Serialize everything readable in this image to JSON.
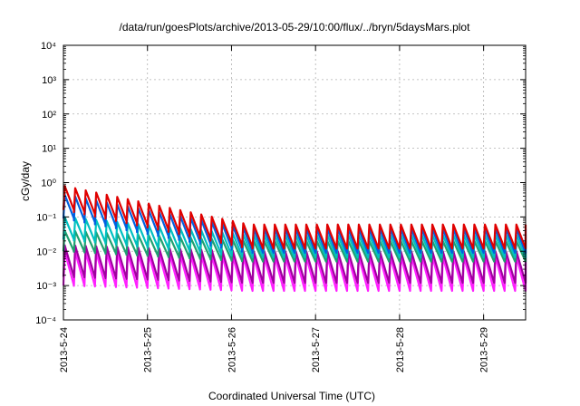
{
  "chart_data": {
    "type": "line",
    "title": "/data/run/goesPlots/archive/2013-05-29/10:00/flux/../bryn/5daysMars.plot",
    "xlabel": "Coordinated Universal Time (UTC)",
    "ylabel": "cGy/day",
    "y_scale": "log",
    "ylim": [
      0.0001,
      10000
    ],
    "xlim_days": [
      0,
      5.5
    ],
    "grid": true,
    "x_ticks": [
      {
        "day": 0,
        "label": "2013-5-24"
      },
      {
        "day": 1,
        "label": "2013-5-25"
      },
      {
        "day": 2,
        "label": "2013-5-26"
      },
      {
        "day": 3,
        "label": "2013-5-27"
      },
      {
        "day": 4,
        "label": "2013-5-28"
      },
      {
        "day": 5,
        "label": "2013-5-29"
      }
    ],
    "y_ticks": [
      {
        "exp": 4,
        "label": "10⁴"
      },
      {
        "exp": 3,
        "label": "10³"
      },
      {
        "exp": 2,
        "label": "10²"
      },
      {
        "exp": 1,
        "label": "10¹"
      },
      {
        "exp": 0,
        "label": "10⁰"
      },
      {
        "exp": -1,
        "label": "10⁻¹"
      },
      {
        "exp": -2,
        "label": "10⁻²"
      },
      {
        "exp": -3,
        "label": "10⁻³"
      },
      {
        "exp": -4,
        "label": "10⁻⁴"
      }
    ],
    "cycles_per_day": 8,
    "series": [
      {
        "color": "#e00000",
        "start_peak": 0.8,
        "end_peak": 0.06,
        "trough_ratio": 0.2
      },
      {
        "color": "#0060e0",
        "start_peak": 0.45,
        "end_peak": 0.045,
        "trough_ratio": 0.2
      },
      {
        "color": "#00c0c0",
        "start_peak": 0.1,
        "end_peak": 0.03,
        "trough_ratio": 0.22
      },
      {
        "color": "#20a070",
        "start_peak": 0.04,
        "end_peak": 0.02,
        "trough_ratio": 0.25
      },
      {
        "color": "#a000a0",
        "start_peak": 0.015,
        "end_peak": 0.01,
        "trough_ratio": 0.12
      },
      {
        "color": "#ff20ff",
        "start_peak": 0.01,
        "end_peak": 0.007,
        "trough_ratio": 0.1
      }
    ]
  }
}
